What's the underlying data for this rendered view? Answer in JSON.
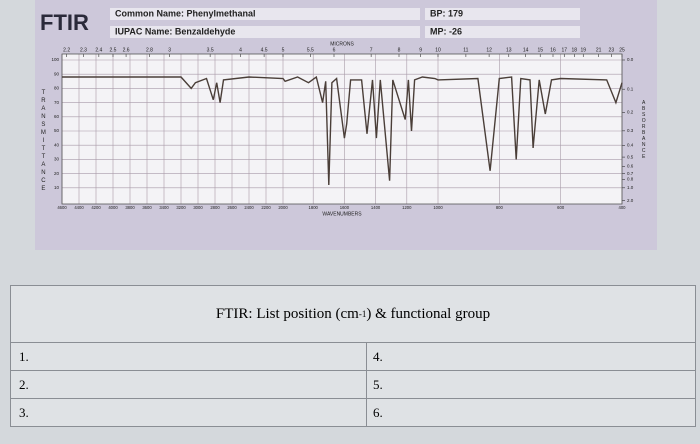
{
  "header": {
    "logo": "FTIR",
    "common_name": "Common Name: Phenylmethanal",
    "iupac_name": "IUPAC Name: Benzaldehyde",
    "bp": "BP: 179",
    "mp": "MP: -26"
  },
  "chart_data": {
    "type": "line",
    "x_label": "WAVENUMBERS",
    "top_axis_label": "MICRONS",
    "y_label": "TRANSMITTANCE",
    "y2_label": "ABSORBANCE",
    "x": [
      4600,
      3200,
      3080,
      3030,
      2900,
      2820,
      2780,
      2740,
      2700,
      2400,
      2000,
      1980,
      1900,
      1830,
      1780,
      1740,
      1720,
      1700,
      1680,
      1650,
      1600,
      1585,
      1560,
      1490,
      1455,
      1420,
      1395,
      1370,
      1310,
      1290,
      1210,
      1190,
      1170,
      1150,
      1100,
      1020,
      1000,
      870,
      830,
      800,
      760,
      745,
      730,
      700,
      690,
      670,
      650,
      630,
      600,
      450,
      420,
      400
    ],
    "values": [
      88,
      88,
      80,
      84,
      87,
      72,
      84,
      70,
      86,
      88,
      87,
      85,
      88,
      84,
      88,
      70,
      85,
      12,
      84,
      87,
      45,
      55,
      86,
      86,
      48,
      86,
      45,
      86,
      15,
      86,
      58,
      86,
      50,
      86,
      88,
      87,
      86,
      87,
      22,
      87,
      88,
      30,
      87,
      86,
      38,
      86,
      62,
      86,
      87,
      86,
      70,
      84
    ],
    "color": "#4a3e38",
    "xlim": [
      4600,
      400
    ],
    "xticks": [
      4600,
      4400,
      4200,
      4000,
      3800,
      3600,
      3400,
      3200,
      3000,
      2800,
      2600,
      2400,
      2200,
      2000,
      1800,
      1600,
      1400,
      1200,
      1000,
      800,
      600,
      400
    ],
    "ylim": [
      0,
      100
    ],
    "yticks": [
      10,
      20,
      30,
      40,
      50,
      60,
      70,
      80,
      90,
      100
    ],
    "micron_ticks": [
      2.2,
      2.3,
      2.4,
      2.5,
      2.6,
      2.8,
      3,
      3.5,
      4,
      4.5,
      5,
      5.5,
      6,
      7,
      8,
      9,
      10,
      11,
      12,
      13,
      14,
      15,
      16,
      17,
      18,
      19,
      21,
      23,
      25
    ],
    "y2ticks": [
      {
        "value": 0,
        "label": "0.0"
      },
      0.1,
      0.2,
      0.3,
      0.4,
      0.5,
      0.6,
      0.7,
      0.8,
      {
        "value": 1,
        "label": "1.0"
      },
      {
        "value": 2,
        "label": "2.0"
      }
    ],
    "grid": true
  },
  "table": {
    "title": {
      "before": "FTIR: List position (cm",
      "sup": "-1",
      "after": ") & functional group"
    },
    "rows": [
      [
        "1.",
        "4."
      ],
      [
        "2.",
        "5."
      ],
      [
        "3.",
        "6."
      ]
    ]
  }
}
